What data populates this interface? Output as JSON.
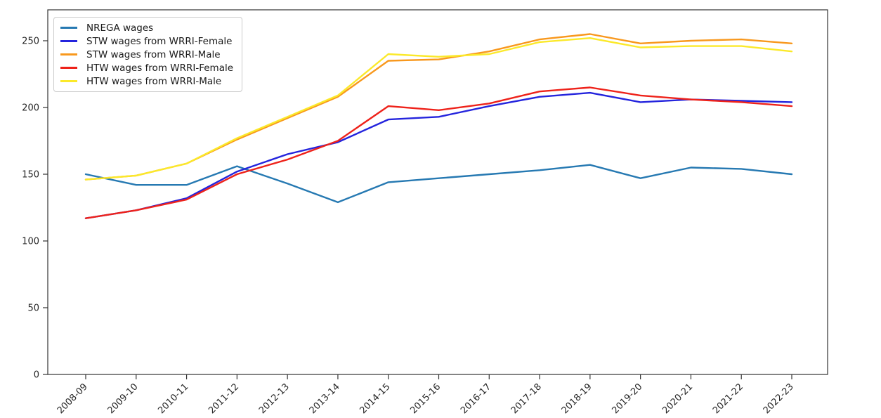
{
  "chart_data": {
    "type": "line",
    "title": "",
    "xlabel": "",
    "ylabel": "",
    "grid": false,
    "legend_position": "upper-left",
    "ylim": [
      0,
      273
    ],
    "yticks": [
      0,
      50,
      100,
      150,
      200,
      250
    ],
    "categories": [
      "2008-09",
      "2009-10",
      "2010-11",
      "2011-12",
      "2012-13",
      "2013-14",
      "2014-15",
      "2015-16",
      "2016-17",
      "2017-18",
      "2018-19",
      "2019-20",
      "2020-21",
      "2021-22",
      "2022-23"
    ],
    "series": [
      {
        "name": "NREGA wages",
        "color": "#2679b2",
        "values": [
          150,
          142,
          142,
          156,
          143,
          129,
          144,
          147,
          150,
          153,
          157,
          147,
          155,
          154,
          150
        ]
      },
      {
        "name": "STW wages from WRRI-Female",
        "color": "#2424dd",
        "values": [
          117,
          123,
          132,
          152,
          165,
          174,
          191,
          193,
          201,
          208,
          211,
          204,
          206,
          205,
          204
        ]
      },
      {
        "name": "STW wages from WRRI-Male",
        "color": "#f8981d",
        "values": [
          146,
          149,
          158,
          176,
          192,
          208,
          235,
          236,
          242,
          251,
          255,
          248,
          250,
          251,
          248
        ]
      },
      {
        "name": "HTW wages from WRRI-Female",
        "color": "#ee221a",
        "values": [
          117,
          123,
          131,
          150,
          161,
          175,
          201,
          198,
          203,
          212,
          215,
          209,
          206,
          204,
          201
        ]
      },
      {
        "name": "HTW wages from WRRI-Male",
        "color": "#fbe92a",
        "values": [
          146,
          149,
          158,
          177,
          193,
          209,
          240,
          238,
          240,
          249,
          252,
          245,
          246,
          246,
          242
        ]
      }
    ]
  }
}
